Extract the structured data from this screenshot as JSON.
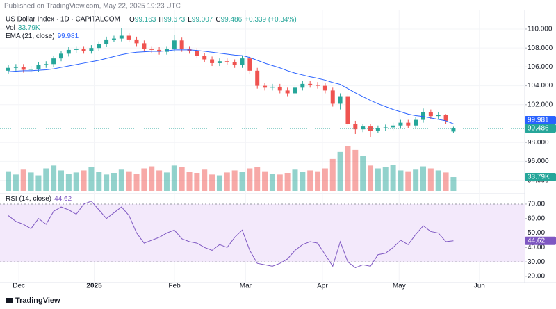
{
  "header": {
    "published": "Published on TradingView.com, May 22, 2025 19:23 UTC",
    "symbol": "US Dollar Index · 1D · CAPITALCOM",
    "o": "O",
    "h": "H",
    "l": "L",
    "c": "C",
    "change": "+0.339 (+0.34%)",
    "footer": "TradingView"
  },
  "chart_data": [
    {
      "type": "candlestick",
      "up_color": "#26a69a",
      "down_color": "#ef5350",
      "open": [
        105.6,
        105.9,
        106.0,
        105.7,
        105.8,
        106.2,
        106.3,
        106.9,
        107.4,
        107.8,
        107.9,
        107.7,
        108.0,
        108.4,
        108.9,
        109.0,
        109.3,
        108.9,
        108.5,
        107.9,
        107.8,
        107.6,
        107.9,
        108.8,
        107.9,
        107.7,
        107.2,
        106.8,
        106.4,
        106.6,
        106.5,
        106.2,
        106.9,
        105.6,
        104.0,
        103.8,
        103.9,
        103.5,
        103.2,
        103.8,
        104.2,
        104.1,
        104.0,
        103.5,
        102.1,
        102.9,
        100.0,
        99.4,
        99.7,
        99.2,
        99.5,
        99.6,
        99.8,
        100.1,
        99.8,
        100.4,
        101.2,
        100.8,
        100.9,
        99.163
      ],
      "high": [
        106.2,
        106.3,
        106.3,
        106.1,
        106.5,
        106.6,
        107.2,
        107.7,
        108.1,
        108.2,
        108.2,
        108.3,
        108.7,
        109.2,
        109.3,
        110.1,
        109.6,
        109.2,
        108.8,
        108.2,
        108.1,
        108.2,
        109.4,
        109.1,
        108.2,
        108.0,
        107.5,
        107.1,
        106.9,
        106.9,
        106.8,
        107.2,
        107.2,
        105.9,
        104.3,
        104.2,
        104.2,
        103.8,
        104.1,
        104.5,
        104.5,
        104.4,
        104.3,
        103.8,
        103.2,
        103.2,
        100.3,
        100.0,
        100.0,
        99.8,
        99.9,
        100.1,
        100.4,
        100.4,
        100.7,
        101.6,
        101.5,
        101.2,
        101.0,
        99.673
      ],
      "low": [
        105.3,
        105.6,
        105.4,
        105.4,
        105.5,
        105.9,
        106.0,
        106.6,
        107.1,
        107.5,
        107.4,
        107.4,
        107.7,
        108.1,
        108.6,
        108.7,
        108.6,
        108.2,
        107.6,
        107.5,
        107.3,
        107.3,
        107.6,
        107.6,
        107.4,
        106.9,
        106.5,
        106.1,
        106.1,
        106.2,
        105.9,
        105.9,
        105.3,
        103.7,
        103.5,
        103.5,
        103.2,
        102.9,
        102.9,
        103.5,
        103.8,
        103.7,
        103.2,
        101.8,
        101.5,
        99.7,
        98.9,
        99.1,
        98.6,
        99.0,
        99.2,
        99.3,
        99.5,
        99.5,
        99.5,
        100.1,
        100.5,
        100.5,
        100.0,
        99.007
      ],
      "close": [
        105.9,
        106.0,
        105.7,
        105.8,
        106.2,
        106.3,
        106.9,
        107.4,
        107.8,
        107.9,
        107.7,
        108.0,
        108.4,
        108.9,
        109.0,
        109.3,
        108.9,
        108.5,
        107.9,
        107.8,
        107.6,
        107.9,
        108.8,
        107.9,
        107.7,
        107.2,
        106.8,
        106.4,
        106.6,
        106.5,
        106.2,
        106.9,
        105.6,
        104.0,
        103.8,
        103.9,
        103.5,
        103.2,
        103.8,
        104.2,
        104.1,
        104.0,
        103.5,
        102.1,
        102.9,
        100.0,
        99.4,
        99.7,
        99.2,
        99.5,
        99.6,
        99.8,
        100.1,
        99.8,
        100.4,
        101.2,
        100.8,
        100.9,
        100.3,
        99.486
      ],
      "volume": {
        "name": "Vol",
        "last_label": "33.79K",
        "values": [
          48,
          40,
          52,
          45,
          38,
          55,
          62,
          50,
          42,
          45,
          50,
          58,
          46,
          40,
          44,
          52,
          48,
          42,
          55,
          60,
          50,
          45,
          62,
          58,
          47,
          44,
          52,
          40,
          38,
          45,
          50,
          46,
          55,
          58,
          48,
          42,
          40,
          44,
          52,
          46,
          50,
          48,
          55,
          78,
          95,
          110,
          100,
          85,
          62,
          55,
          58,
          64,
          50,
          48,
          52,
          60,
          55,
          50,
          45,
          33.79
        ]
      },
      "ema": {
        "name": "EMA (21, close)",
        "color": "#2962ff",
        "values": [
          105.5,
          105.55,
          105.6,
          105.6,
          105.65,
          105.7,
          105.8,
          105.95,
          106.1,
          106.25,
          106.4,
          106.55,
          106.7,
          106.9,
          107.1,
          107.3,
          107.45,
          107.55,
          107.6,
          107.65,
          107.65,
          107.7,
          107.8,
          107.8,
          107.8,
          107.75,
          107.65,
          107.55,
          107.45,
          107.35,
          107.25,
          107.2,
          107.0,
          106.7,
          106.4,
          106.15,
          105.9,
          105.6,
          105.35,
          105.15,
          104.95,
          104.8,
          104.6,
          104.35,
          104.15,
          103.7,
          103.25,
          102.85,
          102.45,
          102.1,
          101.8,
          101.5,
          101.25,
          101.0,
          100.85,
          100.75,
          100.6,
          100.45,
          100.3,
          99.981
        ]
      },
      "xlim": [
        -0.83,
        68.45
      ],
      "xticks": [
        {
          "value": 1.39,
          "label": "Dec"
        },
        {
          "value": 11.38,
          "label": "2025"
        },
        {
          "value": 22.02,
          "label": "Feb"
        },
        {
          "value": 31.45,
          "label": "Mar"
        },
        {
          "value": 41.63,
          "label": "Apr"
        },
        {
          "value": 51.8,
          "label": "May"
        },
        {
          "value": 62.44,
          "label": "Jun"
        }
      ],
      "ylim": [
        92.87,
        110.88
      ],
      "yticks": [
        {
          "value": 94,
          "label": "94.000"
        },
        {
          "value": 96,
          "label": "96.000"
        },
        {
          "value": 98,
          "label": "98.000"
        },
        {
          "value": 102,
          "label": "102.000"
        },
        {
          "value": 104,
          "label": "104.000"
        },
        {
          "value": 106,
          "label": "106.000"
        },
        {
          "value": 108,
          "label": "108.000"
        },
        {
          "value": 110,
          "label": "110.000"
        }
      ]
    },
    {
      "type": "line",
      "name": "RSI (14, close)",
      "color": "#7e57c2",
      "band_color": "#f3e9fb",
      "values": [
        62,
        58,
        56,
        53,
        60,
        56,
        65,
        68,
        66,
        63,
        70,
        72,
        66,
        60,
        64,
        68,
        62,
        50,
        43,
        45,
        47,
        50,
        52,
        46,
        44,
        43,
        40,
        38,
        42,
        40,
        47,
        52,
        38,
        29,
        28,
        27,
        29,
        32,
        38,
        42,
        44,
        43,
        35,
        27,
        44,
        30,
        26,
        28,
        27,
        35,
        36,
        40,
        45,
        42,
        49,
        55,
        51,
        50,
        44,
        44.62
      ],
      "ylim": [
        16.6,
        74.3
      ],
      "band": [
        30,
        70
      ],
      "yticks": [
        {
          "value": 20,
          "label": "20.00"
        },
        {
          "value": 30,
          "label": "30.00"
        },
        {
          "value": 40,
          "label": "40.00"
        },
        {
          "value": 50,
          "label": "50.00"
        },
        {
          "value": 60,
          "label": "60.00"
        },
        {
          "value": 70,
          "label": "70.00"
        }
      ]
    }
  ]
}
